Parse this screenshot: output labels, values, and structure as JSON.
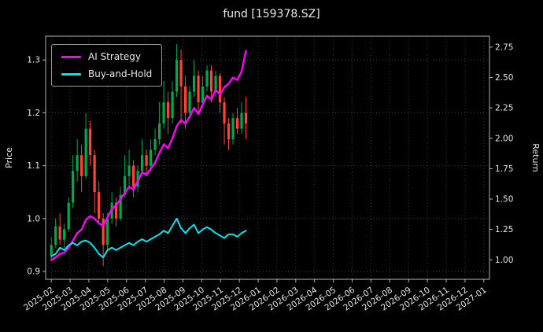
{
  "chart_data": {
    "type": "candlestick",
    "title": "fund [159378.SZ]",
    "ylabel_left": "Price",
    "ylabel_right": "Return",
    "grid": true,
    "legend_position": "upper-left",
    "x_tick_labels": [
      "2025-02",
      "2025-03",
      "2025-04",
      "2025-05",
      "2025-06",
      "2025-07",
      "2025-08",
      "2025-09",
      "2025-10",
      "2025-11",
      "2025-12",
      "2026-01",
      "2026-02",
      "2026-03",
      "2026-04",
      "2026-05",
      "2026-06",
      "2026-07",
      "2026-08",
      "2026-09",
      "2026-10",
      "2026-11",
      "2026-12",
      "2027-01"
    ],
    "x_lim_months": [
      -0.3,
      23.3
    ],
    "price_axis": {
      "ticks": [
        0.9,
        1.0,
        1.1,
        1.2,
        1.3
      ],
      "lim": [
        0.885,
        1.345
      ]
    },
    "return_axis": {
      "ticks": [
        1.0,
        1.25,
        1.5,
        1.75,
        2.0,
        2.25,
        2.5,
        2.75
      ],
      "lim": [
        0.84,
        2.84
      ]
    },
    "candles": {
      "interval": "weekly",
      "start_month_label": "2025-02",
      "up_color": "#00a84e",
      "down_color": "#ff4434",
      "ohlc": [
        [
          0.93,
          0.965,
          0.92,
          0.95
        ],
        [
          0.95,
          1.0,
          0.945,
          0.985
        ],
        [
          0.985,
          1.01,
          0.95,
          0.96
        ],
        [
          0.96,
          0.99,
          0.945,
          0.98
        ],
        [
          0.98,
          1.04,
          0.975,
          1.03
        ],
        [
          1.03,
          1.12,
          1.02,
          1.09
        ],
        [
          1.09,
          1.15,
          1.07,
          1.12
        ],
        [
          1.12,
          1.14,
          1.05,
          1.08
        ],
        [
          1.08,
          1.2,
          1.075,
          1.17
        ],
        [
          1.17,
          1.185,
          1.1,
          1.12
        ],
        [
          1.12,
          1.13,
          1.01,
          1.05
        ],
        [
          1.05,
          1.07,
          0.99,
          1.0
        ],
        [
          1.0,
          1.01,
          0.91,
          0.95
        ],
        [
          0.95,
          1.01,
          0.94,
          1.0
        ],
        [
          1.0,
          1.05,
          0.99,
          1.03
        ],
        [
          1.03,
          1.04,
          0.985,
          1.0
        ],
        [
          1.0,
          1.06,
          0.995,
          1.045
        ],
        [
          1.045,
          1.12,
          1.04,
          1.08
        ],
        [
          1.08,
          1.13,
          1.06,
          1.1
        ],
        [
          1.1,
          1.11,
          1.04,
          1.06
        ],
        [
          1.06,
          1.1,
          1.05,
          1.09
        ],
        [
          1.09,
          1.15,
          1.08,
          1.12
        ],
        [
          1.12,
          1.13,
          1.08,
          1.1
        ],
        [
          1.1,
          1.15,
          1.09,
          1.13
        ],
        [
          1.13,
          1.17,
          1.12,
          1.15
        ],
        [
          1.15,
          1.22,
          1.14,
          1.18
        ],
        [
          1.18,
          1.26,
          1.17,
          1.22
        ],
        [
          1.22,
          1.24,
          1.16,
          1.19
        ],
        [
          1.19,
          1.26,
          1.18,
          1.24
        ],
        [
          1.24,
          1.33,
          1.23,
          1.3
        ],
        [
          1.3,
          1.32,
          1.18,
          1.25
        ],
        [
          1.25,
          1.27,
          1.17,
          1.2
        ],
        [
          1.2,
          1.25,
          1.19,
          1.24
        ],
        [
          1.24,
          1.3,
          1.23,
          1.27
        ],
        [
          1.27,
          1.28,
          1.2,
          1.22
        ],
        [
          1.22,
          1.27,
          1.21,
          1.25
        ],
        [
          1.25,
          1.29,
          1.24,
          1.28
        ],
        [
          1.28,
          1.29,
          1.22,
          1.24
        ],
        [
          1.24,
          1.28,
          1.23,
          1.27
        ],
        [
          1.27,
          1.275,
          1.2,
          1.22
        ],
        [
          1.22,
          1.23,
          1.14,
          1.18
        ],
        [
          1.18,
          1.19,
          1.13,
          1.15
        ],
        [
          1.15,
          1.2,
          1.14,
          1.19
        ],
        [
          1.19,
          1.21,
          1.16,
          1.17
        ],
        [
          1.17,
          1.22,
          1.16,
          1.2
        ],
        [
          1.2,
          1.23,
          1.15,
          1.18
        ]
      ]
    },
    "series": [
      {
        "name": "AI Strategy",
        "axis": "return",
        "color": "#ff00ff",
        "values": [
          1.0,
          1.02,
          1.05,
          1.06,
          1.1,
          1.16,
          1.22,
          1.25,
          1.33,
          1.36,
          1.34,
          1.3,
          1.28,
          1.35,
          1.42,
          1.45,
          1.5,
          1.55,
          1.6,
          1.58,
          1.65,
          1.72,
          1.7,
          1.75,
          1.8,
          1.88,
          1.95,
          1.92,
          2.0,
          2.1,
          2.15,
          2.12,
          2.18,
          2.25,
          2.2,
          2.28,
          2.35,
          2.32,
          2.4,
          2.36,
          2.42,
          2.45,
          2.5,
          2.48,
          2.55,
          2.72
        ]
      },
      {
        "name": "Buy-and-Hold",
        "axis": "return",
        "color": "#00e5ee",
        "values": [
          1.03,
          1.05,
          1.1,
          1.08,
          1.12,
          1.14,
          1.12,
          1.15,
          1.16,
          1.14,
          1.1,
          1.05,
          1.02,
          1.08,
          1.1,
          1.08,
          1.1,
          1.12,
          1.14,
          1.12,
          1.15,
          1.17,
          1.15,
          1.17,
          1.19,
          1.21,
          1.24,
          1.22,
          1.28,
          1.34,
          1.26,
          1.22,
          1.26,
          1.29,
          1.22,
          1.25,
          1.27,
          1.25,
          1.22,
          1.2,
          1.18,
          1.21,
          1.21,
          1.19,
          1.22,
          1.24
        ]
      }
    ]
  }
}
